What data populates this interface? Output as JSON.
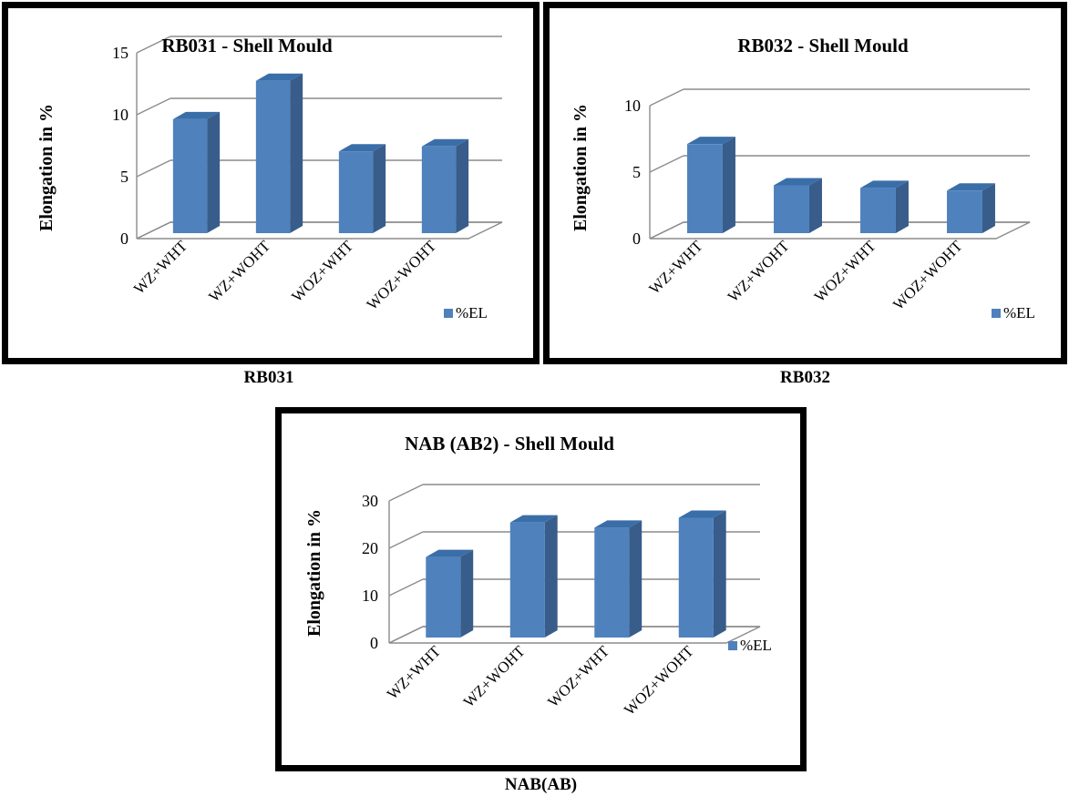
{
  "captions": [
    "RB031",
    "RB032",
    "NAB(AB)"
  ],
  "colors": {
    "bar_front": "#4f81bd",
    "bar_side": "#385d8a",
    "bar_top": "#3a6ea8",
    "grid": "#8c8c8c"
  },
  "chart_data": [
    {
      "type": "bar",
      "title": "RB031 - Shell Mould",
      "ylabel": "Elongation in %",
      "xlabel": "",
      "categories": [
        "WZ+WHT",
        "WZ+WOHT",
        "WOZ+WHT",
        "WOZ+WOHT"
      ],
      "series": [
        {
          "name": "%EL",
          "values": [
            9.2,
            12.3,
            6.6,
            7.0
          ]
        }
      ],
      "ylim": [
        0,
        15
      ],
      "yticks": [
        0,
        5,
        10,
        15
      ],
      "grid": true,
      "legend": "bottom-right"
    },
    {
      "type": "bar",
      "title": "RB032 - Shell Mould",
      "ylabel": "Elongation in %",
      "xlabel": "",
      "categories": [
        "WZ+WHT",
        "WZ+WOHT",
        "WOZ+WHT",
        "WOZ+WOHT"
      ],
      "series": [
        {
          "name": "%EL",
          "values": [
            6.7,
            3.6,
            3.4,
            3.2
          ]
        }
      ],
      "ylim": [
        0,
        10
      ],
      "yticks": [
        0,
        5,
        10
      ],
      "grid": true,
      "legend": "bottom-right"
    },
    {
      "type": "bar",
      "title": "NAB (AB2) - Shell Mould",
      "ylabel": "Elongation in %",
      "xlabel": "",
      "categories": [
        "WZ+WHT",
        "WZ+WOHT",
        "WOZ+WHT",
        "WOZ+WOHT"
      ],
      "series": [
        {
          "name": "%EL",
          "values": [
            17.0,
            24.3,
            23.2,
            25.3
          ]
        }
      ],
      "ylim": [
        0,
        30
      ],
      "yticks": [
        0,
        10,
        20,
        30
      ],
      "grid": true,
      "legend": "bottom-right"
    }
  ]
}
